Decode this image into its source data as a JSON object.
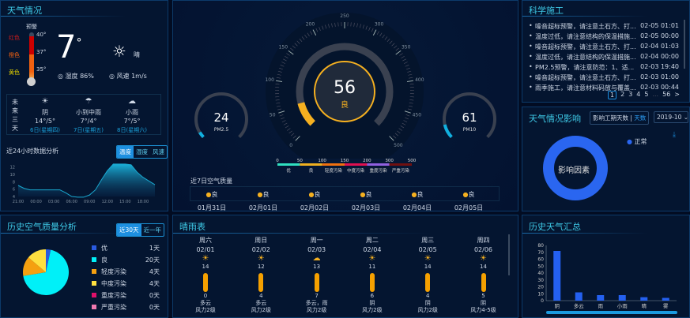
{
  "weather": {
    "title": "天气情况",
    "warning_label": "预警",
    "levels": [
      {
        "label": "红色",
        "color": "#d01a1a",
        "temp": "40°"
      },
      {
        "label": "橙色",
        "color": "#f06010",
        "temp": "37°"
      },
      {
        "label": "黄色",
        "color": "#e0d000",
        "temp": "35°"
      }
    ],
    "temp": "7",
    "temp_unit": "°",
    "condition": "晴",
    "humidity_label": "湿度",
    "humidity": "86%",
    "wind_label": "风速",
    "wind": "1m/s",
    "future_label": "未来三天",
    "forecast": [
      {
        "icon": "sun-cloud-icon",
        "cond": "阴",
        "temp": "14°/5°",
        "date": "6日(星期四)"
      },
      {
        "icon": "rain-icon",
        "cond": "小到中雨",
        "temp": "7°/4°",
        "date": "7日(星期五)"
      },
      {
        "icon": "light-rain-icon",
        "cond": "小雨",
        "temp": "7°/5°",
        "date": "8日(星期六)"
      }
    ],
    "chart_title": "近24小时数据分析",
    "tabs": [
      "温度",
      "湿度",
      "风速"
    ],
    "active_tab": "温度"
  },
  "chart_data": [
    {
      "type": "area",
      "x": [
        "21:00",
        "22:00",
        "23:00",
        "00:00",
        "01:00",
        "02:00",
        "03:00",
        "04:00",
        "05:00",
        "06:00",
        "07:00",
        "08:00",
        "09:00",
        "10:00",
        "11:00",
        "12:00",
        "13:00",
        "14:00",
        "15:00",
        "16:00",
        "17:00",
        "18:00",
        "19:00",
        "20:00"
      ],
      "values": [
        7,
        6.2,
        5.8,
        5.8,
        5.8,
        5.8,
        5.8,
        5.8,
        5,
        4,
        3.8,
        3.8,
        4.4,
        5.8,
        8.5,
        11,
        12.8,
        12.8,
        12.8,
        12.6,
        10.6,
        9.2,
        8.2,
        7.2
      ],
      "x_ticks": [
        "21:00",
        "00:00",
        "03:00",
        "06:00",
        "09:00",
        "12:00",
        "15:00",
        "18:00"
      ],
      "y_ticks": [
        "4",
        "6",
        "8",
        "10",
        "12"
      ],
      "ylim": [
        4,
        13
      ],
      "color": "#1aa8d0"
    },
    {
      "type": "pie",
      "categories": [
        "优",
        "良",
        "轻度污染",
        "中度污染",
        "重度污染",
        "严重污染"
      ],
      "values": [
        1,
        20,
        4,
        4,
        0,
        0
      ],
      "labels": [
        "1天",
        "20天",
        "4天",
        "4天",
        "0天",
        "0天"
      ],
      "colors": [
        "#2a5be0",
        "#00f0f8",
        "#f5a010",
        "#ffe040",
        "#e0106a",
        "#f07ab0"
      ]
    },
    {
      "type": "bar",
      "categories": [
        "阴",
        "多云",
        "雨",
        "小雨",
        "晴",
        "雾"
      ],
      "values": [
        72,
        12,
        8,
        8,
        5,
        4
      ],
      "y_ticks": [
        "0",
        "10",
        "20",
        "30",
        "40",
        "50",
        "60",
        "70",
        "80"
      ],
      "ylim": [
        0,
        80
      ],
      "color": "#2460f0"
    }
  ],
  "air": {
    "aqi": "56",
    "level": "良",
    "aqi_fraction": 0.112,
    "pm25_value": "24",
    "pm25_label": "PM2.5",
    "pm25_fraction": 0.05,
    "pm10_value": "61",
    "pm10_label": "PM10",
    "pm10_fraction": 0.12,
    "dial_ticks": [
      "0",
      "50",
      "100",
      "150",
      "200",
      "250",
      "300",
      "350",
      "400",
      "450",
      "500"
    ],
    "scale_ticks": [
      "0",
      "50",
      "100",
      "150",
      "200",
      "300",
      "500"
    ],
    "scale": [
      {
        "label": "优",
        "color": "#30e0c0"
      },
      {
        "label": "良",
        "color": "#f0b020"
      },
      {
        "label": "轻度污染",
        "color": "#f07010"
      },
      {
        "label": "中度污染",
        "color": "#e01050"
      },
      {
        "label": "重度污染",
        "color": "#9060e0"
      },
      {
        "label": "严重污染",
        "color": "#701010"
      }
    ],
    "week_title": "近7日空气质量",
    "week": [
      {
        "level": "良",
        "date": "01月31日"
      },
      {
        "level": "良",
        "date": "02月01日"
      },
      {
        "level": "良",
        "date": "02月02日"
      },
      {
        "level": "良",
        "date": "02月03日"
      },
      {
        "level": "良",
        "date": "02月04日"
      },
      {
        "level": "良",
        "date": "02月05日"
      }
    ]
  },
  "science": {
    "title": "科学施工",
    "items": [
      {
        "text": "噪音超标预警，请注意土石方、打...",
        "time": "02-05 01:01"
      },
      {
        "text": "温度过低，请注意结构的保温措施...",
        "time": "02-05 00:00"
      },
      {
        "text": "噪音超标预警，请注意土石方、打...",
        "time": "02-04 01:03"
      },
      {
        "text": "温度过低，请注意结构的保温措施...",
        "time": "02-04 00:00"
      },
      {
        "text": "PM2.5预警，请注意防范：1、适...",
        "time": "02-03 19:40"
      },
      {
        "text": "噪音超标预警，请注意土石方、打...",
        "time": "02-03 01:00"
      },
      {
        "text": "雨季施工，请注意材料码放与覆盖...",
        "time": "02-03 00:44"
      }
    ],
    "pages": [
      "1",
      "2",
      "3",
      "4",
      "5"
    ],
    "ellipsis": "...",
    "last_page": "56",
    "next": ">"
  },
  "impact": {
    "title": "天气情况影响",
    "tabs": [
      "影响工期天数",
      "天数"
    ],
    "select": "2019-10",
    "center": "影响因素",
    "legend": "正常",
    "color": "#2a66f0"
  },
  "aq_history": {
    "title": "历史空气质量分析",
    "tabs": [
      "近30天",
      "近一年"
    ]
  },
  "rain": {
    "title": "晴雨表",
    "days": [
      {
        "w": "周六",
        "d": "02/01",
        "icon": "sun-icon",
        "hi": "14",
        "lo": "0",
        "cond": "多云",
        "wind": "风力2级"
      },
      {
        "w": "周日",
        "d": "02/02",
        "icon": "sun-icon",
        "hi": "12",
        "lo": "4",
        "cond": "多云",
        "wind": "风力2级"
      },
      {
        "w": "周一",
        "d": "02/03",
        "icon": "cloud-rain-icon",
        "hi": "13",
        "lo": "7",
        "cond": "多云，雨",
        "wind": "风力2级"
      },
      {
        "w": "周二",
        "d": "02/04",
        "icon": "sun-icon",
        "hi": "11",
        "lo": "6",
        "cond": "阴",
        "wind": "风力2级"
      },
      {
        "w": "周三",
        "d": "02/05",
        "icon": "sun-icon",
        "hi": "14",
        "lo": "4",
        "cond": "阴",
        "wind": "风力2级"
      },
      {
        "w": "周四",
        "d": "02/06",
        "icon": "sun-icon",
        "hi": "14",
        "lo": "5",
        "cond": "阴",
        "wind": "风力4-5级"
      }
    ]
  },
  "history": {
    "title": "历史天气汇总"
  }
}
